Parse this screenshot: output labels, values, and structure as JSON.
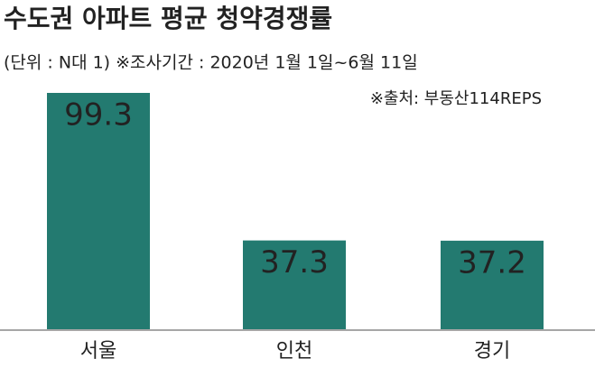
{
  "chart_data": {
    "type": "bar",
    "title": "수도권 아파트 평균 청약경쟁률",
    "subtitle": "(단위 : N대 1) ※조사기간 : 2020년 1월 1일~6월 11일",
    "source": "※출처: 부동산114REPS",
    "categories": [
      "서울",
      "인천",
      "경기"
    ],
    "values": [
      99.3,
      37.3,
      37.2
    ],
    "color": "#237a70"
  }
}
